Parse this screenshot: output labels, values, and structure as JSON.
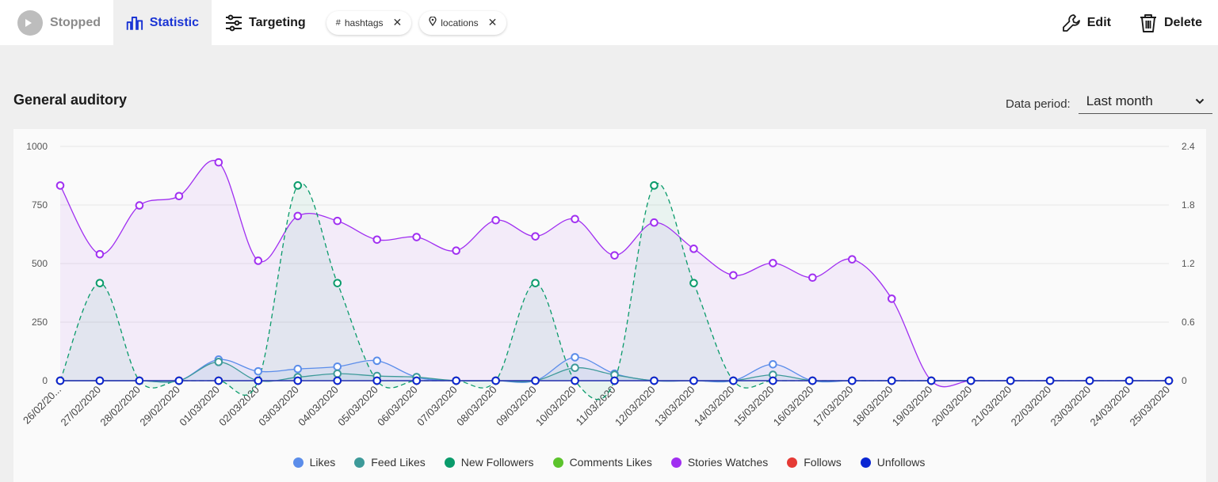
{
  "topbar": {
    "stopped_label": "Stopped",
    "statistic_label": "Statistic",
    "targeting_label": "Targeting",
    "chips": [
      {
        "icon": "hash-icon",
        "label": "hashtags"
      },
      {
        "icon": "location-pin-icon",
        "label": "locations"
      }
    ],
    "edit_label": "Edit",
    "delete_label": "Delete",
    "accent_color": "#1a34d4"
  },
  "section": {
    "title": "General auditory",
    "period_label": "Data period:",
    "period_value": "Last month"
  },
  "chart_data": {
    "type": "line",
    "title": "",
    "xlabel": "",
    "ylabel": "",
    "ylim": [
      0,
      1000
    ],
    "y_ticks": [
      "0",
      "250",
      "500",
      "750",
      "1000"
    ],
    "y2lim": [
      0,
      2.4
    ],
    "y2_ticks": [
      "0",
      "0.6",
      "1.2",
      "1.8",
      "2.4"
    ],
    "grid": true,
    "legend_position": "bottom",
    "categories": [
      "26/02/20...",
      "27/02/2020",
      "28/02/2020",
      "29/02/2020",
      "01/03/2020",
      "02/03/2020",
      "03/03/2020",
      "04/03/2020",
      "05/03/2020",
      "06/03/2020",
      "07/03/2020",
      "08/03/2020",
      "09/03/2020",
      "10/03/2020",
      "11/03/2020",
      "12/03/2020",
      "13/03/2020",
      "14/03/2020",
      "15/03/2020",
      "16/03/2020",
      "17/03/2020",
      "18/03/2020",
      "19/03/2020",
      "20/03/2020",
      "21/03/2020",
      "22/03/2020",
      "23/03/2020",
      "24/03/2020",
      "25/03/2020"
    ],
    "series": [
      {
        "name": "Likes",
        "color": "#5b8dea",
        "axis": "left",
        "style": "solid",
        "fill": true,
        "values": [
          0,
          0,
          0,
          0,
          90,
          40,
          50,
          60,
          85,
          15,
          0,
          0,
          0,
          100,
          30,
          0,
          0,
          0,
          70,
          0,
          0,
          0,
          0,
          0,
          0,
          0,
          0,
          0,
          0
        ]
      },
      {
        "name": "Feed Likes",
        "color": "#3d9a99",
        "axis": "left",
        "style": "solid",
        "fill": true,
        "values": [
          0,
          0,
          0,
          0,
          80,
          0,
          15,
          30,
          20,
          15,
          0,
          0,
          0,
          55,
          25,
          0,
          0,
          0,
          25,
          0,
          0,
          0,
          0,
          0,
          0,
          0,
          0,
          0,
          0
        ]
      },
      {
        "name": "New Followers",
        "color": "#0a9b6b",
        "axis": "right",
        "style": "dashed",
        "fill": true,
        "values": [
          0,
          1,
          0,
          0,
          0,
          0,
          2,
          1,
          0,
          0,
          0,
          0,
          1,
          0,
          0,
          2,
          1,
          0,
          0,
          0,
          0,
          0,
          0,
          0,
          0,
          0,
          0,
          0,
          0
        ]
      },
      {
        "name": "Comments Likes",
        "color": "#5cc32c",
        "axis": "left",
        "style": "solid",
        "fill": false,
        "values": [
          0,
          0,
          0,
          0,
          0,
          0,
          0,
          0,
          0,
          0,
          0,
          0,
          0,
          0,
          0,
          0,
          0,
          0,
          0,
          0,
          0,
          0,
          0,
          0,
          0,
          0,
          0,
          0,
          0
        ]
      },
      {
        "name": "Stories Watches",
        "color": "#a02ff1",
        "axis": "left",
        "style": "solid",
        "fill": true,
        "values": [
          833,
          540,
          748,
          788,
          932,
          512,
          703,
          682,
          602,
          613,
          555,
          685,
          616,
          690,
          535,
          675,
          563,
          450,
          502,
          440,
          518,
          350,
          0,
          0,
          0,
          0,
          0,
          0,
          0
        ]
      },
      {
        "name": "Follows",
        "color": "#e53a35",
        "axis": "left",
        "style": "solid",
        "fill": false,
        "values": [
          0,
          0,
          0,
          0,
          0,
          0,
          0,
          0,
          0,
          0,
          0,
          0,
          0,
          0,
          0,
          0,
          0,
          0,
          0,
          0,
          0,
          0,
          0,
          0,
          0,
          0,
          0,
          0,
          0
        ]
      },
      {
        "name": "Unfollows",
        "color": "#0a26d3",
        "axis": "left",
        "style": "solid",
        "fill": false,
        "values": [
          0,
          0,
          0,
          0,
          0,
          0,
          0,
          0,
          0,
          0,
          0,
          0,
          0,
          0,
          0,
          0,
          0,
          0,
          0,
          0,
          0,
          0,
          0,
          0,
          0,
          0,
          0,
          0,
          0
        ]
      }
    ]
  }
}
